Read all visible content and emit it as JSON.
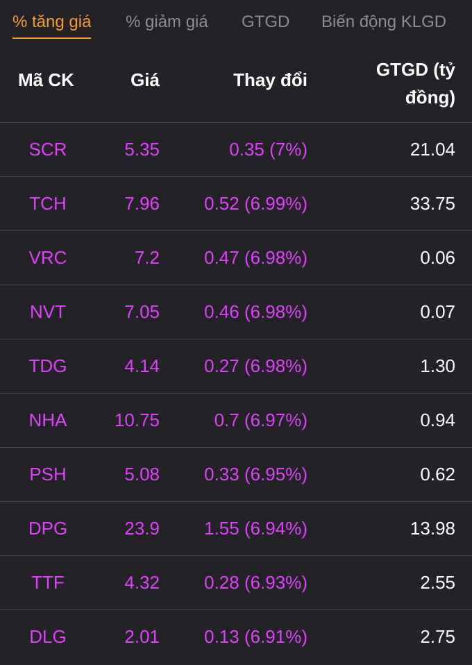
{
  "tabs": [
    {
      "label": "% tăng giá",
      "active": true
    },
    {
      "label": "% giảm giá",
      "active": false
    },
    {
      "label": "GTGD",
      "active": false
    },
    {
      "label": "Biến động KLGD",
      "active": false
    }
  ],
  "colors": {
    "accent": "#f39c32",
    "ceiling": "#e040fb",
    "background": "#222227"
  },
  "table": {
    "headers": {
      "code": "Mã CK",
      "price": "Giá",
      "change": "Thay đổi",
      "value": "GTGD (tỷ đồng)"
    },
    "rows": [
      {
        "code": "SCR",
        "price": "5.35",
        "change": "0.35 (7%)",
        "value": "21.04"
      },
      {
        "code": "TCH",
        "price": "7.96",
        "change": "0.52 (6.99%)",
        "value": "33.75"
      },
      {
        "code": "VRC",
        "price": "7.2",
        "change": "0.47 (6.98%)",
        "value": "0.06"
      },
      {
        "code": "NVT",
        "price": "7.05",
        "change": "0.46 (6.98%)",
        "value": "0.07"
      },
      {
        "code": "TDG",
        "price": "4.14",
        "change": "0.27 (6.98%)",
        "value": "1.30"
      },
      {
        "code": "NHA",
        "price": "10.75",
        "change": "0.7 (6.97%)",
        "value": "0.94"
      },
      {
        "code": "PSH",
        "price": "5.08",
        "change": "0.33 (6.95%)",
        "value": "0.62"
      },
      {
        "code": "DPG",
        "price": "23.9",
        "change": "1.55 (6.94%)",
        "value": "13.98"
      },
      {
        "code": "TTF",
        "price": "4.32",
        "change": "0.28 (6.93%)",
        "value": "2.55"
      },
      {
        "code": "DLG",
        "price": "2.01",
        "change": "0.13 (6.91%)",
        "value": "2.75"
      }
    ]
  }
}
